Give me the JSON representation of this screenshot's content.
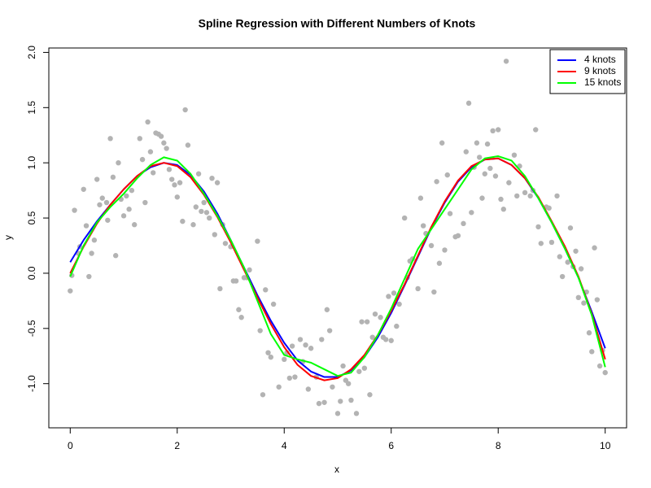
{
  "chart_data": {
    "type": "scatter",
    "title": "Spline Regression with Different Numbers of Knots",
    "x_label": "x",
    "y_label": "y",
    "xlim": [
      -0.4,
      10.4
    ],
    "ylim": [
      -1.4,
      2.04
    ],
    "xticks": [
      0,
      2,
      4,
      6,
      8,
      10
    ],
    "yticks": [
      {
        "value": -1,
        "label": "-1.0"
      },
      -0.5,
      {
        "value": 0,
        "label": "0.0"
      },
      0.5,
      {
        "value": 1,
        "label": "1.0"
      },
      1.5,
      {
        "value": 2,
        "label": "2.0"
      }
    ],
    "legend": "topright",
    "points": {
      "color": "#b3b3b3",
      "x": [
        0,
        0.03,
        0.08,
        0.15,
        0.18,
        0.25,
        0.3,
        0.35,
        0.4,
        0.45,
        0.5,
        0.55,
        0.6,
        0.68,
        0.7,
        0.75,
        0.8,
        0.85,
        0.9,
        0.95,
        1.0,
        1.05,
        1.1,
        1.15,
        1.2,
        1.3,
        1.35,
        1.4,
        1.45,
        1.5,
        1.55,
        1.6,
        1.65,
        1.7,
        1.75,
        1.8,
        1.85,
        1.9,
        1.95,
        2.0,
        2.05,
        2.1,
        2.15,
        2.2,
        2.3,
        2.35,
        2.4,
        2.45,
        2.5,
        2.55,
        2.6,
        2.65,
        2.7,
        2.75,
        2.8,
        2.85,
        2.9,
        3.0,
        3.05,
        3.1,
        3.15,
        3.2,
        3.25,
        3.3,
        3.35,
        3.5,
        3.55,
        3.6,
        3.65,
        3.7,
        3.75,
        3.8,
        3.9,
        4.0,
        4.05,
        4.1,
        4.15,
        4.2,
        4.3,
        4.35,
        4.4,
        4.45,
        4.5,
        4.6,
        4.65,
        4.7,
        4.75,
        4.8,
        4.85,
        4.9,
        5.0,
        5.05,
        5.1,
        5.15,
        5.2,
        5.25,
        5.35,
        5.4,
        5.45,
        5.5,
        5.55,
        5.6,
        5.65,
        5.7,
        5.8,
        5.85,
        5.9,
        5.95,
        6.0,
        6.05,
        6.1,
        6.15,
        6.25,
        6.3,
        6.35,
        6.4,
        6.5,
        6.55,
        6.6,
        6.65,
        6.75,
        6.8,
        6.85,
        6.9,
        6.95,
        7.0,
        7.05,
        7.1,
        7.2,
        7.25,
        7.35,
        7.4,
        7.45,
        7.5,
        7.55,
        7.6,
        7.65,
        7.7,
        7.75,
        7.8,
        7.85,
        7.9,
        7.95,
        8.0,
        8.05,
        8.1,
        8.15,
        8.2,
        8.3,
        8.35,
        8.4,
        8.5,
        8.6,
        8.65,
        8.7,
        8.75,
        8.8,
        8.9,
        8.95,
        9.0,
        9.1,
        9.15,
        9.2,
        9.3,
        9.35,
        9.4,
        9.45,
        9.5,
        9.55,
        9.6,
        9.65,
        9.7,
        9.75,
        9.8,
        9.85,
        9.9,
        9.95,
        10.0
      ],
      "y": [
        -0.16,
        -0.02,
        0.57,
        0.18,
        0.24,
        0.76,
        0.43,
        -0.03,
        0.18,
        0.3,
        0.85,
        0.62,
        0.68,
        0.64,
        0.48,
        1.22,
        0.87,
        0.16,
        1.0,
        0.67,
        0.52,
        0.7,
        0.58,
        0.75,
        0.44,
        1.22,
        1.03,
        0.64,
        1.37,
        1.1,
        0.91,
        1.27,
        1.26,
        1.24,
        1.18,
        1.13,
        0.94,
        0.85,
        0.8,
        0.69,
        0.82,
        0.47,
        1.48,
        1.16,
        0.44,
        0.6,
        0.9,
        0.56,
        0.64,
        0.55,
        0.5,
        0.86,
        0.35,
        0.82,
        -0.14,
        0.44,
        0.27,
        0.24,
        -0.07,
        -0.07,
        -0.33,
        -0.4,
        -0.04,
        -0.04,
        0.03,
        0.29,
        -0.52,
        -1.1,
        -0.15,
        -0.72,
        -0.76,
        -0.28,
        -1.03,
        -0.78,
        -0.72,
        -0.95,
        -0.66,
        -0.94,
        -0.6,
        -0.8,
        -0.65,
        -1.05,
        -0.68,
        -0.94,
        -1.18,
        -0.6,
        -1.17,
        -0.33,
        -0.52,
        -1.03,
        -1.27,
        -1.16,
        -0.84,
        -0.97,
        -1.0,
        -1.15,
        -1.27,
        -0.89,
        -0.44,
        -0.86,
        -0.44,
        -1.1,
        -0.58,
        -0.37,
        -0.4,
        -0.58,
        -0.6,
        -0.21,
        -0.61,
        -0.18,
        -0.48,
        -0.28,
        0.5,
        -0.04,
        0.11,
        0.13,
        -0.14,
        0.68,
        0.43,
        0.36,
        0.25,
        -0.17,
        0.83,
        0.09,
        1.18,
        0.21,
        0.89,
        0.54,
        0.33,
        0.34,
        0.45,
        1.1,
        1.54,
        0.55,
        0.96,
        1.18,
        1.05,
        0.68,
        0.9,
        1.17,
        0.95,
        1.29,
        0.88,
        1.3,
        0.67,
        0.58,
        1.92,
        0.82,
        1.07,
        0.7,
        0.97,
        0.73,
        0.7,
        0.75,
        1.3,
        0.42,
        0.27,
        0.6,
        0.59,
        0.28,
        0.7,
        0.15,
        -0.03,
        0.1,
        0.41,
        0.06,
        0.2,
        -0.22,
        0.04,
        -0.27,
        -0.17,
        -0.54,
        -0.71,
        0.23,
        -0.24,
        -0.84,
        -0.7,
        -0.9
      ]
    },
    "line_x": [
      0,
      0.25,
      0.5,
      0.75,
      1,
      1.25,
      1.5,
      1.75,
      2,
      2.25,
      2.5,
      2.75,
      3,
      3.25,
      3.5,
      3.75,
      4,
      4.25,
      4.5,
      4.75,
      5,
      5.25,
      5.5,
      5.75,
      6,
      6.25,
      6.5,
      6.75,
      7,
      7.25,
      7.5,
      7.75,
      8,
      8.25,
      8.5,
      8.75,
      9,
      9.25,
      9.5,
      9.75,
      10
    ],
    "series": [
      {
        "name": "4 knots",
        "color": "#0000ff",
        "values": [
          0.1,
          0.3,
          0.47,
          0.62,
          0.76,
          0.88,
          0.96,
          1.0,
          0.98,
          0.89,
          0.74,
          0.54,
          0.3,
          0.05,
          -0.2,
          -0.43,
          -0.63,
          -0.79,
          -0.89,
          -0.94,
          -0.94,
          -0.88,
          -0.76,
          -0.58,
          -0.36,
          -0.11,
          0.15,
          0.41,
          0.64,
          0.83,
          0.96,
          1.03,
          1.04,
          0.98,
          0.86,
          0.68,
          0.46,
          0.22,
          -0.04,
          -0.35,
          -0.68
        ]
      },
      {
        "name": "9 knots",
        "color": "#ff0000",
        "values": [
          0.0,
          0.24,
          0.45,
          0.62,
          0.76,
          0.88,
          0.97,
          1.0,
          0.97,
          0.87,
          0.71,
          0.51,
          0.28,
          0.03,
          -0.22,
          -0.46,
          -0.67,
          -0.83,
          -0.93,
          -0.97,
          -0.95,
          -0.87,
          -0.74,
          -0.56,
          -0.34,
          -0.1,
          0.16,
          0.42,
          0.65,
          0.84,
          0.97,
          1.03,
          1.04,
          0.98,
          0.86,
          0.69,
          0.47,
          0.24,
          -0.03,
          -0.37,
          -0.78
        ]
      },
      {
        "name": "15 knots",
        "color": "#00ff00",
        "values": [
          -0.03,
          0.25,
          0.46,
          0.6,
          0.72,
          0.86,
          0.98,
          1.05,
          1.02,
          0.9,
          0.72,
          0.52,
          0.3,
          0.05,
          -0.25,
          -0.55,
          -0.74,
          -0.78,
          -0.81,
          -0.87,
          -0.93,
          -0.9,
          -0.76,
          -0.56,
          -0.32,
          -0.05,
          0.22,
          0.4,
          0.58,
          0.76,
          0.94,
          1.04,
          1.06,
          1.02,
          0.88,
          0.68,
          0.46,
          0.22,
          -0.04,
          -0.38,
          -0.85
        ]
      }
    ]
  }
}
